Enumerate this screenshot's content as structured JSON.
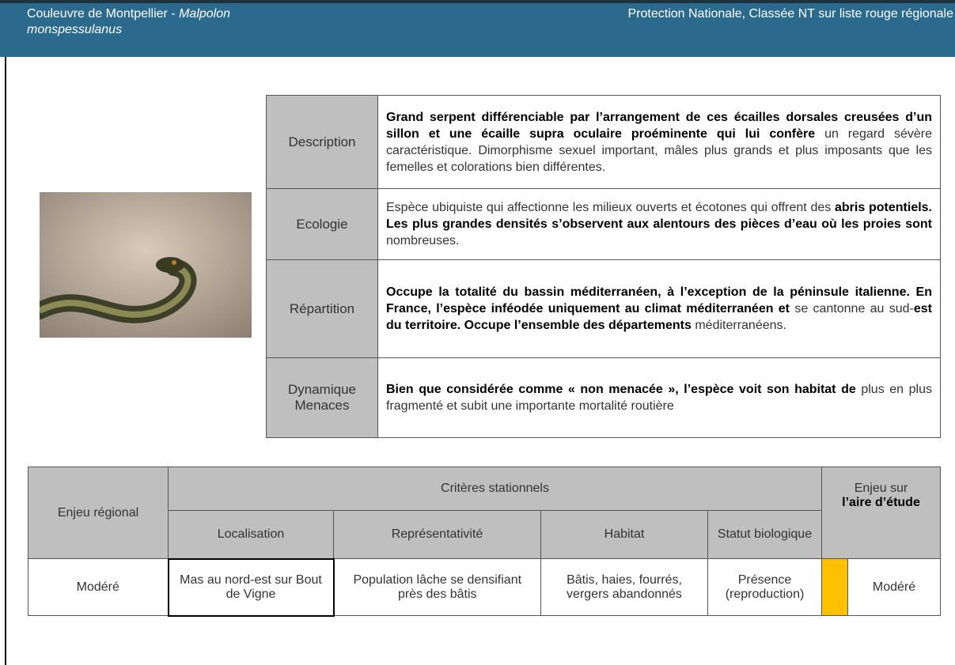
{
  "header": {
    "title_common": "Couleuvre de Montpellier - ",
    "title_latin": "Malpolon monspessulanus",
    "status": "Protection Nationale, Classée NT sur liste rouge régionale"
  },
  "description_table": {
    "rows": [
      {
        "label": [
          "Description"
        ],
        "text": [
          {
            "text": "Grand serpent différenciable par l’arrangement de ces écailles dorsales creusées d’un sillon et une écaille supra oculaire proéminente qui lui confère ",
            "bold": true
          },
          {
            "text": "un regard sévère caractéristique. Dimorphisme sexuel important, mâles plus grands et plus imposants que les femelles et colorations bien différentes.",
            "bold": false
          }
        ]
      },
      {
        "label": [
          "Ecologie"
        ],
        "text": [
          {
            "text": "Espèce ubiquiste qui affectionne les milieux ouverts et écotones qui offrent des ",
            "bold": false
          },
          {
            "text": "abris potentiels. Les plus grandes densités s’observent aux alentours des pièces d’eau où les proies sont ",
            "bold": true
          },
          {
            "text": "nombreuses.",
            "bold": false
          }
        ]
      },
      {
        "label": [
          "Répartition"
        ],
        "text": [
          {
            "text": "Occupe la totalité du bassin méditerranéen, à l’exception de la péninsule italienne. En France, l’espèce inféodée uniquement au climat méditerranéen et ",
            "bold": true
          },
          {
            "text": "se cantonne au sud-",
            "bold": false
          },
          {
            "text": "est du territoire. Occupe l’ensemble des départements ",
            "bold": true
          },
          {
            "text": "méditerranéens.",
            "bold": false
          }
        ]
      },
      {
        "label": [
          "Dynamique",
          "Menaces"
        ],
        "text": [
          {
            "text": "Bien que considérée comme « non menacée », l’espèce voit son habitat de ",
            "bold": true
          },
          {
            "text": "plus en plus fragmenté et subit une importante mortalité routière",
            "bold": false
          }
        ]
      }
    ]
  },
  "stakes_table": {
    "regional_header": "Enjeu régional",
    "group_header": "Critères stationnels",
    "columns": [
      "Localisation",
      "Représentativité",
      "Habitat",
      "Statut biologique"
    ],
    "study_header": "Enjeu sur",
    "study_header_bold": "l’aire d’étude",
    "row": {
      "regional": "Modéré",
      "cells": [
        "Mas au nord-est sur Bout de Vigne",
        "Population lâche se densifiant près des bâtis",
        "Bâtis, haies, fourrés, vergers abandonnés",
        "Présence (reproduction)"
      ],
      "study_color": "#ffc000",
      "study": "Modéré"
    }
  }
}
